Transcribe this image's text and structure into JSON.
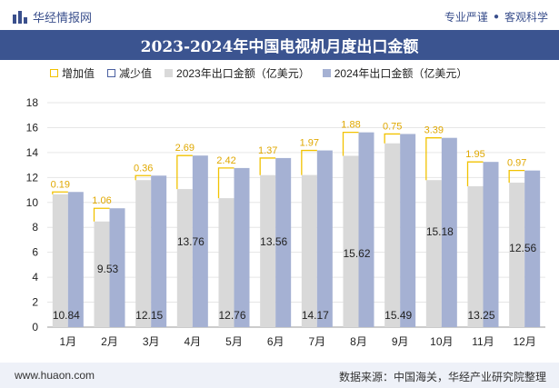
{
  "header": {
    "brand_name": "华经情报网",
    "tag1": "专业严谨",
    "tag2": "客观科学",
    "dot": "●"
  },
  "footer": {
    "site": "www.huaon.com",
    "source": "数据来源：中国海关，华经产业研究院整理"
  },
  "colors": {
    "brand": "#3b5490",
    "increase": "#f2c200",
    "decrease": "#4a5fa0",
    "series2023": "#d9d9d9",
    "series2024": "#a5b1d3",
    "label_diff": "#e0a800"
  },
  "chart_data": {
    "type": "bar",
    "title": "2023-2024年中国电视机月度出口金额",
    "categories": [
      "1月",
      "2月",
      "3月",
      "4月",
      "5月",
      "6月",
      "7月",
      "8月",
      "9月",
      "10月",
      "11月",
      "12月"
    ],
    "series": [
      {
        "name": "2023年出口金额（亿美元）",
        "values": [
          10.65,
          8.47,
          11.79,
          11.07,
          10.34,
          12.19,
          12.2,
          13.74,
          14.74,
          11.79,
          11.3,
          11.59
        ]
      },
      {
        "name": "2024年出口金额（亿美元）",
        "values": [
          10.84,
          9.53,
          12.15,
          13.76,
          12.76,
          13.56,
          14.17,
          15.62,
          15.49,
          15.18,
          13.25,
          12.56
        ]
      }
    ],
    "diff_series": [
      {
        "name": "增加值",
        "values": [
          0.19,
          1.06,
          0.36,
          2.69,
          2.42,
          1.37,
          1.97,
          1.88,
          0.75,
          3.39,
          1.95,
          0.97
        ]
      },
      {
        "name": "减少值",
        "values": []
      }
    ],
    "ylim": [
      0,
      18
    ],
    "yticks": [
      0,
      2,
      4,
      6,
      8,
      10,
      12,
      14,
      16,
      18
    ],
    "legend_position": "top-left",
    "grid": true
  }
}
